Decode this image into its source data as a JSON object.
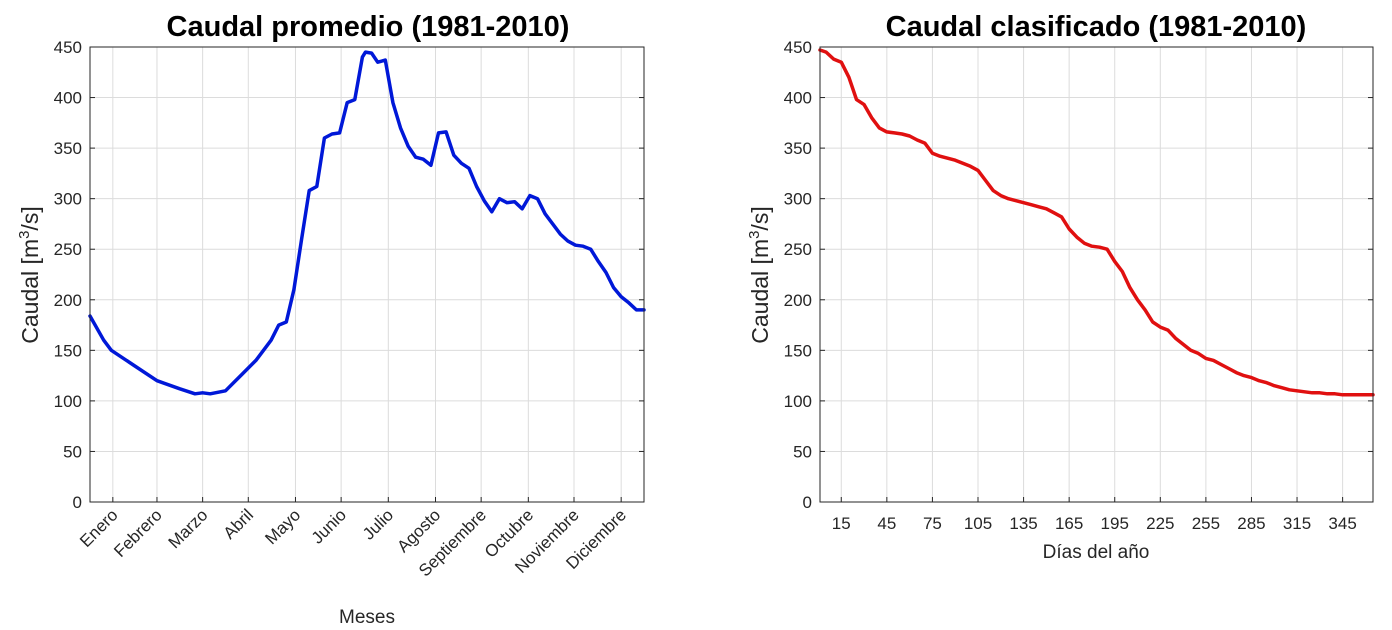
{
  "chart_data": [
    {
      "type": "line",
      "title": "Caudal promedio (1981-2010)",
      "xlabel": "Meses",
      "ylabel": "Caudal [m",
      "ylabel_sup": "3",
      "ylabel_tail": "/s]",
      "categories": [
        "Enero",
        "Febrero",
        "Marzo",
        "Abril",
        "Mayo",
        "Junio",
        "Julio",
        "Agosto",
        "Septiembre",
        "Octubre",
        "Noviembre",
        "Diciembre"
      ],
      "ylim": [
        0,
        450
      ],
      "yticks": [
        0,
        50,
        100,
        150,
        200,
        250,
        300,
        350,
        400,
        450
      ],
      "grid": true,
      "line_color": "#0018d8",
      "series": [
        {
          "x": [
            1,
            10,
            15,
            30,
            45,
            60,
            70,
            75,
            80,
            90,
            100,
            110,
            120,
            125,
            130,
            135,
            140,
            145,
            150,
            155,
            160,
            165,
            170,
            175,
            180,
            182,
            186,
            190,
            195,
            200,
            205,
            210,
            215,
            220,
            225,
            230,
            235,
            240,
            245,
            250,
            255,
            260,
            265,
            270,
            275,
            280,
            285,
            290,
            295,
            300,
            305,
            310,
            315,
            320,
            325,
            330,
            335,
            340,
            345,
            350,
            355,
            360,
            365
          ],
          "values": [
            184,
            160,
            150,
            135,
            120,
            112,
            107,
            108,
            107,
            110,
            125,
            140,
            160,
            175,
            178,
            210,
            260,
            308,
            312,
            360,
            364,
            365,
            395,
            398,
            440,
            445,
            444,
            435,
            437,
            395,
            370,
            352,
            341,
            339,
            333,
            365,
            366,
            343,
            335,
            330,
            312,
            298,
            287,
            300,
            296,
            297,
            290,
            303,
            300,
            285,
            275,
            265,
            258,
            254,
            253,
            250,
            238,
            227,
            212,
            203,
            197,
            190,
            190
          ]
        }
      ]
    },
    {
      "type": "line",
      "title": "Caudal clasificado (1981-2010)",
      "xlabel": "Días del año",
      "ylabel": "Caudal [m",
      "ylabel_sup": "3",
      "ylabel_tail": "/s]",
      "xlim": [
        1,
        365
      ],
      "xticks": [
        15,
        45,
        75,
        105,
        135,
        165,
        195,
        225,
        255,
        285,
        315,
        345
      ],
      "ylim": [
        0,
        450
      ],
      "yticks": [
        0,
        50,
        100,
        150,
        200,
        250,
        300,
        350,
        400,
        450
      ],
      "grid": true,
      "line_color": "#e01010",
      "series": [
        {
          "x": [
            1,
            5,
            10,
            15,
            20,
            25,
            30,
            35,
            40,
            45,
            50,
            55,
            60,
            65,
            70,
            75,
            80,
            85,
            90,
            95,
            100,
            105,
            110,
            115,
            120,
            125,
            130,
            135,
            140,
            145,
            150,
            155,
            160,
            165,
            170,
            175,
            180,
            185,
            190,
            195,
            200,
            205,
            210,
            215,
            220,
            225,
            230,
            235,
            240,
            245,
            250,
            255,
            260,
            265,
            270,
            275,
            280,
            285,
            290,
            295,
            300,
            305,
            310,
            315,
            320,
            325,
            330,
            335,
            340,
            345,
            350,
            355,
            360,
            365
          ],
          "values": [
            447,
            445,
            438,
            435,
            420,
            398,
            393,
            380,
            370,
            366,
            365,
            364,
            362,
            358,
            355,
            345,
            342,
            340,
            338,
            335,
            332,
            328,
            318,
            308,
            303,
            300,
            298,
            296,
            294,
            292,
            290,
            286,
            282,
            270,
            262,
            256,
            253,
            252,
            250,
            238,
            228,
            212,
            200,
            190,
            178,
            173,
            170,
            162,
            156,
            150,
            147,
            142,
            140,
            136,
            132,
            128,
            125,
            123,
            120,
            118,
            115,
            113,
            111,
            110,
            109,
            108,
            108,
            107,
            107,
            106,
            106,
            106,
            106,
            106
          ]
        }
      ]
    }
  ]
}
